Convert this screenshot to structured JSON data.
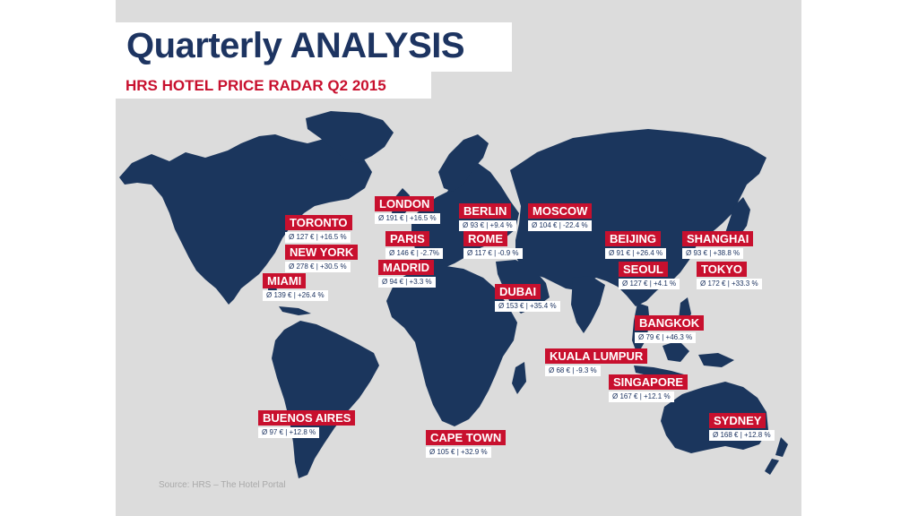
{
  "title": "Quarterly ANALYSIS",
  "subtitle": "HRS HOTEL PRICE RADAR Q2 2015",
  "source": "Source: HRS – The Hotel Portal",
  "colors": {
    "map_land": "#1b365d",
    "background": "#dcdcdc",
    "accent_red": "#c8102e",
    "title_navy": "#1d3461"
  },
  "cities": [
    {
      "name": "LONDON",
      "stats": "Ø 191 € | +16.5 %"
    },
    {
      "name": "BERLIN",
      "stats": "Ø 93 € | +9.4 %"
    },
    {
      "name": "MOSCOW",
      "stats": "Ø 104 € | -22.4 %"
    },
    {
      "name": "TORONTO",
      "stats": "Ø 127 € | +16.5 %"
    },
    {
      "name": "PARIS",
      "stats": "Ø 146 € | -2.7%"
    },
    {
      "name": "ROME",
      "stats": "Ø 117 € | -0.9 %"
    },
    {
      "name": "BEIJING",
      "stats": "Ø 91 € | +26.4 %"
    },
    {
      "name": "SHANGHAI",
      "stats": "Ø 93 € | +38.8 %"
    },
    {
      "name": "NEW YORK",
      "stats": "Ø 278 € | +30.5 %"
    },
    {
      "name": "MADRID",
      "stats": "Ø 94 € | +3.3 %"
    },
    {
      "name": "SEOUL",
      "stats": "Ø 127 € | +4.1 %"
    },
    {
      "name": "TOKYO",
      "stats": "Ø 172 € | +33.3 %"
    },
    {
      "name": "MIAMI",
      "stats": "Ø 139 € | +26.4 %"
    },
    {
      "name": "DUBAI",
      "stats": "Ø 153 € | +35.4 %"
    },
    {
      "name": "BANGKOK",
      "stats": "Ø 79 € | +46.3 %"
    },
    {
      "name": "KUALA LUMPUR",
      "stats": "Ø 68 € | -9.3 %"
    },
    {
      "name": "SINGAPORE",
      "stats": "Ø 167 € | +12.1 %"
    },
    {
      "name": "BUENOS AIRES",
      "stats": "Ø 97 € | +12.8 %"
    },
    {
      "name": "SYDNEY",
      "stats": "Ø 168 € | +12.8 %"
    },
    {
      "name": "CAPE TOWN",
      "stats": "Ø 105 € | +32.9 %"
    }
  ]
}
